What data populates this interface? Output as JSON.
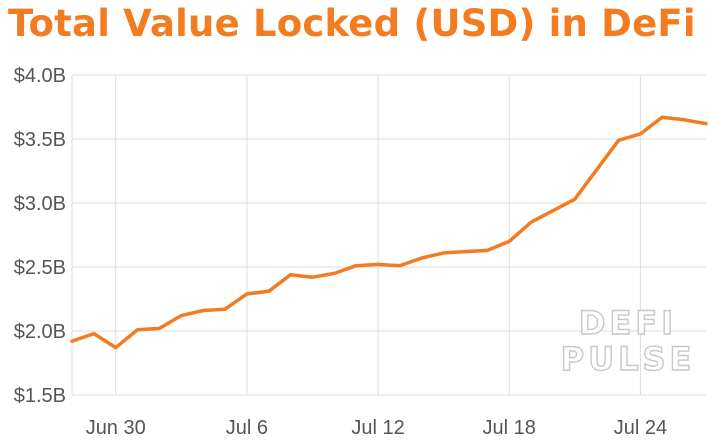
{
  "colors": {
    "title": "#F47C20",
    "line": "#F47C20",
    "grid": "#dddddd",
    "axis_text": "#555555",
    "watermark": "#c8c8c8"
  },
  "watermark": {
    "line1": "DEFI",
    "line2": "PULSE"
  },
  "chart_data": {
    "type": "line",
    "title": "Total Value Locked (USD) in DeFi",
    "xlabel": "",
    "ylabel": "",
    "ylim": [
      1.5,
      4.0
    ],
    "xlim": [
      "2020-06-28",
      "2020-07-27"
    ],
    "yticks": [
      1.5,
      2.0,
      2.5,
      3.0,
      3.5,
      4.0
    ],
    "ytick_labels": [
      "$1.5B",
      "$2.0B",
      "$2.5B",
      "$3.0B",
      "$3.5B",
      "$4.0B"
    ],
    "xticks": [
      "2020-06-30",
      "2020-07-06",
      "2020-07-12",
      "2020-07-18",
      "2020-07-24"
    ],
    "xtick_labels": [
      "Jun 30",
      "Jul 6",
      "Jul 12",
      "Jul 18",
      "Jul 24"
    ],
    "grid": true,
    "series": [
      {
        "name": "",
        "x": [
          "2020-06-28",
          "2020-06-29",
          "2020-06-30",
          "2020-07-01",
          "2020-07-02",
          "2020-07-03",
          "2020-07-04",
          "2020-07-05",
          "2020-07-06",
          "2020-07-07",
          "2020-07-08",
          "2020-07-09",
          "2020-07-10",
          "2020-07-11",
          "2020-07-12",
          "2020-07-13",
          "2020-07-14",
          "2020-07-15",
          "2020-07-16",
          "2020-07-17",
          "2020-07-18",
          "2020-07-19",
          "2020-07-20",
          "2020-07-21",
          "2020-07-22",
          "2020-07-23",
          "2020-07-24",
          "2020-07-25",
          "2020-07-26",
          "2020-07-27"
        ],
        "y": [
          1.92,
          1.98,
          1.87,
          2.01,
          2.02,
          2.12,
          2.16,
          2.17,
          2.29,
          2.31,
          2.44,
          2.42,
          2.45,
          2.51,
          2.52,
          2.51,
          2.57,
          2.61,
          2.62,
          2.63,
          2.7,
          2.85,
          2.94,
          3.03,
          3.26,
          3.49,
          3.54,
          3.67,
          3.65,
          3.62
        ]
      }
    ]
  }
}
